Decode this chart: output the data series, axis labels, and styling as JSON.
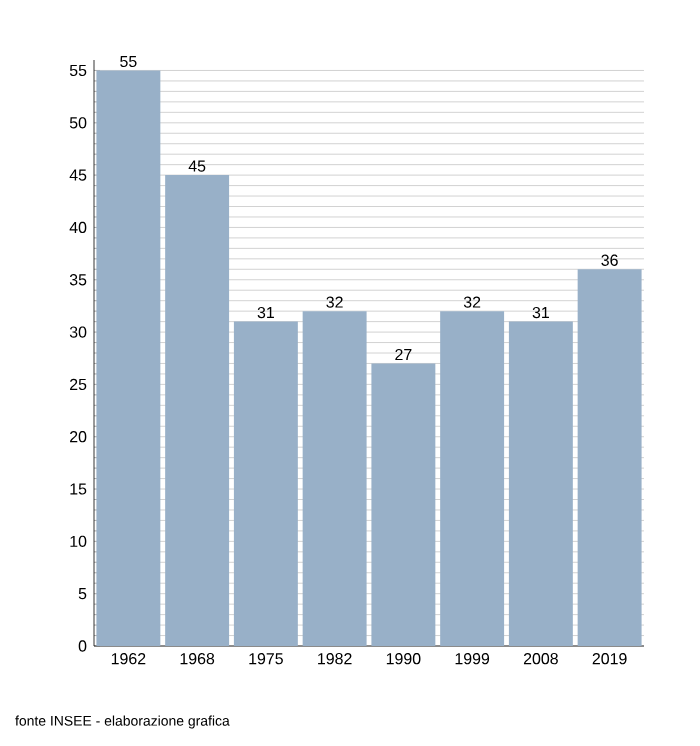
{
  "chart_data": {
    "type": "bar",
    "categories": [
      "1962",
      "1968",
      "1975",
      "1982",
      "1990",
      "1999",
      "2008",
      "2019"
    ],
    "values": [
      55,
      45,
      31,
      32,
      27,
      32,
      31,
      36
    ],
    "color": "#98b0c8",
    "data_labels": true,
    "grid": "y",
    "ylim": [
      0,
      56
    ],
    "yticks": [
      0,
      {
        "value": 1,
        "label": null
      },
      {
        "value": 2,
        "label": null
      },
      {
        "value": 3,
        "label": null
      },
      {
        "value": 4,
        "label": null
      },
      5,
      {
        "value": 6,
        "label": null
      },
      {
        "value": 7,
        "label": null
      },
      {
        "value": 8,
        "label": null
      },
      {
        "value": 9,
        "label": null
      },
      10,
      {
        "value": 11,
        "label": null
      },
      {
        "value": 12,
        "label": null
      },
      {
        "value": 13,
        "label": null
      },
      {
        "value": 14,
        "label": null
      },
      15,
      {
        "value": 16,
        "label": null
      },
      {
        "value": 17,
        "label": null
      },
      {
        "value": 18,
        "label": null
      },
      {
        "value": 19,
        "label": null
      },
      20,
      {
        "value": 21,
        "label": null
      },
      {
        "value": 22,
        "label": null
      },
      {
        "value": 23,
        "label": null
      },
      {
        "value": 24,
        "label": null
      },
      25,
      {
        "value": 26,
        "label": null
      },
      {
        "value": 27,
        "label": null
      },
      {
        "value": 28,
        "label": null
      },
      {
        "value": 29,
        "label": null
      },
      30,
      {
        "value": 31,
        "label": null
      },
      {
        "value": 32,
        "label": null
      },
      {
        "value": 33,
        "label": null
      },
      {
        "value": 34,
        "label": null
      },
      35,
      {
        "value": 36,
        "label": null
      },
      {
        "value": 37,
        "label": null
      },
      {
        "value": 38,
        "label": null
      },
      {
        "value": 39,
        "label": null
      },
      40,
      {
        "value": 41,
        "label": null
      },
      {
        "value": 42,
        "label": null
      },
      {
        "value": 43,
        "label": null
      },
      {
        "value": 44,
        "label": null
      },
      45,
      {
        "value": 46,
        "label": null
      },
      {
        "value": 47,
        "label": null
      },
      {
        "value": 48,
        "label": null
      },
      {
        "value": 49,
        "label": null
      },
      50,
      {
        "value": 51,
        "label": null
      },
      {
        "value": 52,
        "label": null
      },
      {
        "value": 53,
        "label": null
      },
      {
        "value": 54,
        "label": null
      },
      55
    ],
    "annotations": [
      "fonte INSEE - elaborazione grafica"
    ]
  }
}
